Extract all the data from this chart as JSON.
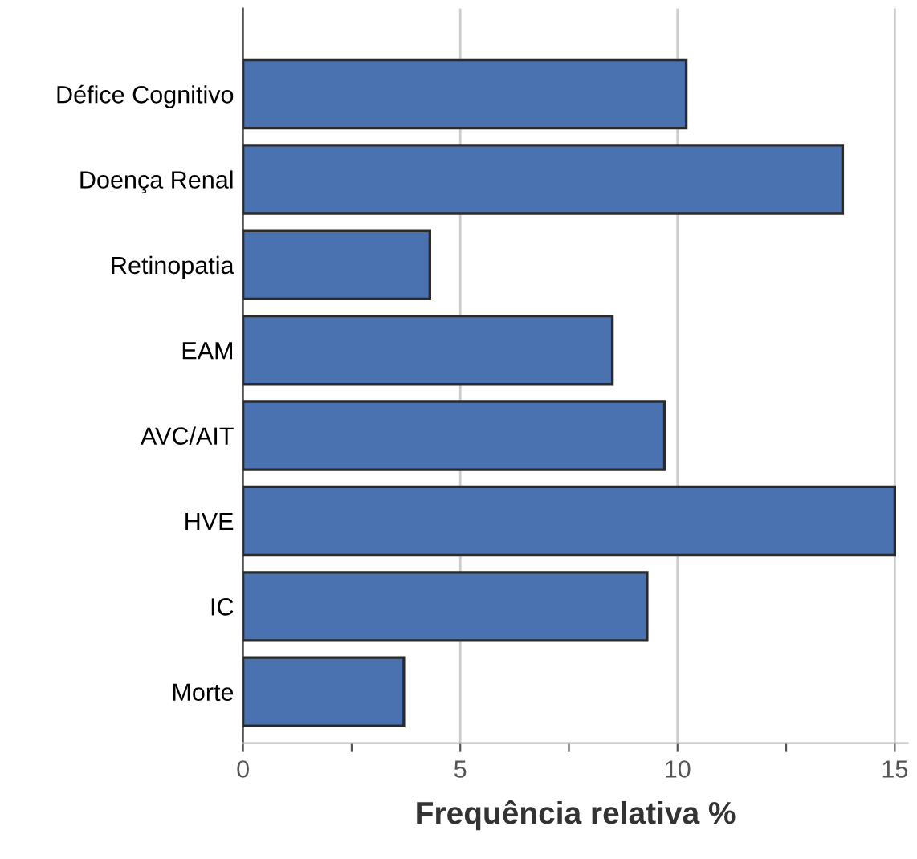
{
  "chart_data": {
    "type": "bar",
    "orientation": "horizontal",
    "xlabel": "Frequência relativa %",
    "categories": [
      "Défice Cognitivo",
      "Doença Renal",
      "Retinopatia",
      "EAM",
      "AVC/AIT",
      "HVE",
      "IC",
      "Morte"
    ],
    "values": [
      10.2,
      13.8,
      4.3,
      8.5,
      9.7,
      15.0,
      9.3,
      3.7
    ],
    "color": "#4a72b0",
    "xlim": [
      0,
      15.3
    ],
    "xticks": [
      0,
      {
        "value": 2.5,
        "label": null
      },
      5,
      {
        "value": 7.5,
        "label": null
      },
      10,
      {
        "value": 12.5,
        "label": null
      },
      15
    ],
    "grid": "x",
    "legend": false
  }
}
